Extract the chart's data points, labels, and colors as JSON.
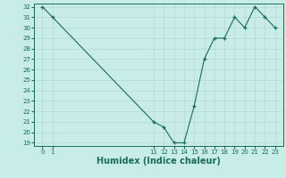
{
  "x": [
    0,
    1,
    11,
    12,
    13,
    14,
    15,
    16,
    17,
    18,
    19,
    20,
    21,
    22,
    23
  ],
  "y": [
    32,
    31,
    21,
    20.5,
    19,
    19,
    22.5,
    27,
    29,
    29,
    31,
    30,
    32,
    31,
    30
  ],
  "line_color": "#1a6b5a",
  "marker": "+",
  "bg_color": "#c8ece8",
  "grid_color": "#b8d8d4",
  "xlabel": "Humidex (Indice chaleur)",
  "xlabel_fontsize": 7,
  "ylim_min": 19,
  "ylim_max": 32,
  "yticks": [
    19,
    20,
    21,
    22,
    23,
    24,
    25,
    26,
    27,
    28,
    29,
    30,
    31,
    32
  ],
  "xtick_positions": [
    0,
    1,
    11,
    12,
    13,
    14,
    15,
    16,
    17,
    18,
    19,
    20,
    21,
    22,
    23
  ],
  "xtick_labels": [
    "0",
    "1",
    "11",
    "12",
    "13",
    "14",
    "15",
    "16",
    "17",
    "18",
    "19",
    "20",
    "21",
    "22",
    "23"
  ]
}
